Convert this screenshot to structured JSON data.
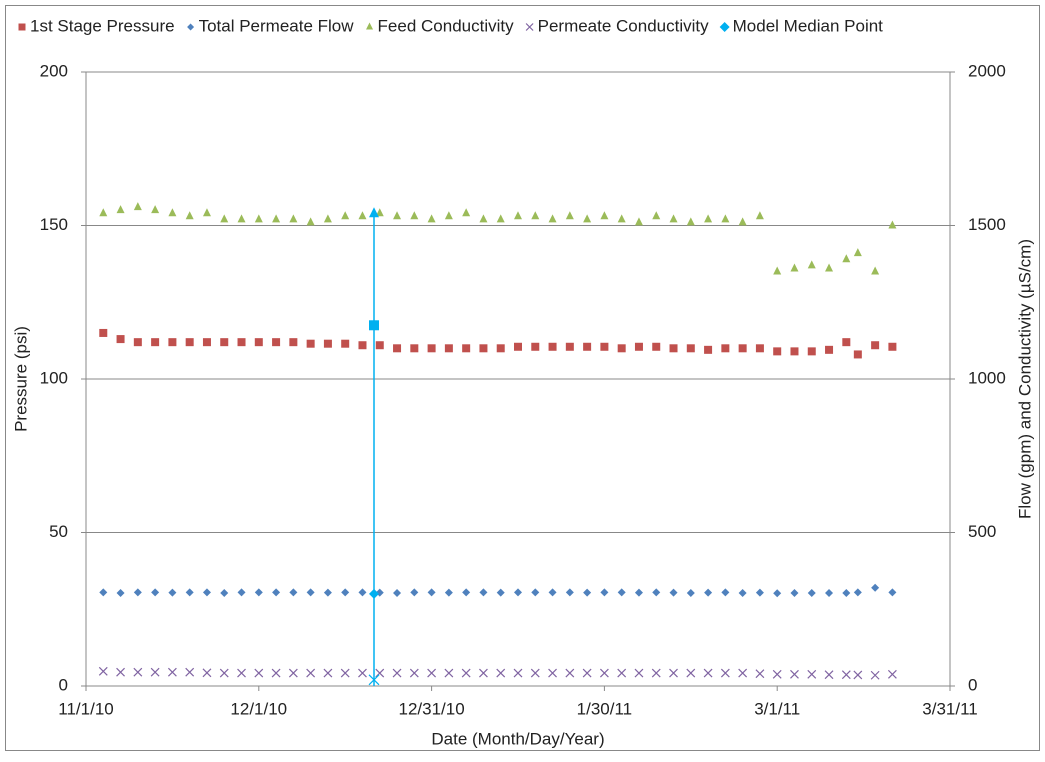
{
  "chart_data": {
    "type": "scatter",
    "x_title": "Date (Month/Day/Year)",
    "y_title": "Pressure (psi)",
    "y2_title": "Flow (gpm) and Conductivity (µS/cm)",
    "x": [
      "11/4/10",
      "11/7/10",
      "11/10/10",
      "11/13/10",
      "11/16/10",
      "11/19/10",
      "11/22/10",
      "11/25/10",
      "11/28/10",
      "12/1/10",
      "12/4/10",
      "12/7/10",
      "12/10/10",
      "12/13/10",
      "12/16/10",
      "12/19/10",
      "12/22/10",
      "12/25/10",
      "12/28/10",
      "12/31/10",
      "1/3/11",
      "1/6/11",
      "1/9/11",
      "1/12/11",
      "1/15/11",
      "1/18/11",
      "1/21/11",
      "1/24/11",
      "1/27/11",
      "1/30/11",
      "2/2/11",
      "2/5/11",
      "2/8/11",
      "2/11/11",
      "2/14/11",
      "2/17/11",
      "2/20/11",
      "2/23/11",
      "2/26/11",
      "3/1/11",
      "3/4/11",
      "3/7/11",
      "3/10/11",
      "3/13/11",
      "3/15/11",
      "3/18/11",
      "3/21/11"
    ],
    "xlim": [
      "11/1/10",
      "3/31/11"
    ],
    "xticks": [
      "11/1/10",
      "12/1/10",
      "12/31/10",
      "1/30/11",
      "3/1/11",
      "3/31/11"
    ],
    "ylim": [
      0,
      200
    ],
    "yticks": [
      0,
      50,
      100,
      150,
      200
    ],
    "y2lim": [
      0,
      2000
    ],
    "y2ticks": [
      0,
      500,
      1000,
      1500,
      2000
    ],
    "grid": true,
    "legend": "top",
    "series": [
      {
        "name": "1st Stage Pressure",
        "color": "#c0504d",
        "marker": "square",
        "axis": "y",
        "values": [
          115,
          113,
          112,
          112,
          112,
          112,
          112,
          112,
          112,
          112,
          112,
          112,
          111.5,
          111.5,
          111.5,
          111,
          111,
          110,
          110,
          110,
          110,
          110,
          110,
          110,
          110.5,
          110.5,
          110.5,
          110.5,
          110.5,
          110.5,
          110,
          110.5,
          110.5,
          110,
          110,
          109.5,
          110,
          110,
          110,
          109,
          109,
          109,
          109.5,
          112,
          108,
          111,
          110.5
        ]
      },
      {
        "name": "Total Permeate Flow",
        "color": "#4f81bd",
        "marker": "diamond",
        "axis": "y2",
        "values": [
          305,
          303,
          305,
          305,
          304,
          305,
          305,
          303,
          305,
          305,
          305,
          305,
          305,
          304,
          305,
          305,
          304,
          303,
          305,
          305,
          304,
          305,
          305,
          304,
          305,
          305,
          305,
          305,
          304,
          305,
          305,
          304,
          305,
          304,
          303,
          304,
          305,
          303,
          304,
          302,
          303,
          303,
          303,
          303,
          305,
          320,
          305
        ]
      },
      {
        "name": "Feed Conductivity",
        "color": "#9bbb59",
        "marker": "triangle",
        "axis": "y2",
        "values": [
          1540,
          1550,
          1560,
          1550,
          1540,
          1530,
          1540,
          1520,
          1520,
          1520,
          1520,
          1520,
          1510,
          1520,
          1530,
          1530,
          1540,
          1530,
          1530,
          1520,
          1530,
          1540,
          1520,
          1520,
          1530,
          1530,
          1520,
          1530,
          1520,
          1530,
          1520,
          1510,
          1530,
          1520,
          1510,
          1520,
          1520,
          1510,
          1530,
          1350,
          1360,
          1370,
          1360,
          1390,
          1410,
          1350,
          1500
        ]
      },
      {
        "name": "Permeate Conductivity",
        "color": "#8064a2",
        "marker": "x",
        "axis": "y2",
        "values": [
          48,
          45,
          45,
          45,
          45,
          45,
          43,
          42,
          42,
          42,
          42,
          42,
          42,
          42,
          42,
          42,
          42,
          42,
          42,
          42,
          42,
          42,
          42,
          42,
          42,
          42,
          42,
          42,
          42,
          42,
          42,
          42,
          42,
          42,
          42,
          42,
          42,
          42,
          40,
          38,
          38,
          38,
          37,
          37,
          36,
          35,
          38
        ]
      }
    ],
    "median": {
      "name": "Model Median Point",
      "color": "#00b0f0",
      "marker": "diamond",
      "x": "12/21/10",
      "pressure": 117.5,
      "flow": 300,
      "feed_conductivity": 1540,
      "permeate_conductivity": 20
    }
  }
}
